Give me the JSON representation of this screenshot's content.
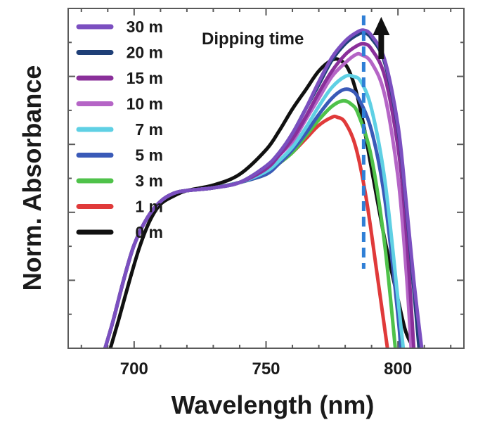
{
  "chart_data": {
    "type": "line",
    "title": "",
    "xlabel": "Wavelength (nm)",
    "ylabel": "Norm. Absorbance",
    "xlim": [
      675,
      825
    ],
    "ylim": [
      0,
      1.25
    ],
    "x_ticks": [
      700,
      750,
      800
    ],
    "y_tick_labels_shown": false,
    "grid": false,
    "legend_position": "top-left",
    "annotation": {
      "text": "Dipping time",
      "marker_x": 787,
      "arrow": "up",
      "marker_color": "#2f7fd6",
      "arrow_color": "#111111"
    },
    "series": [
      {
        "name": "30 m",
        "color": "#7b4fc0",
        "x": [
          689,
          692,
          696,
          700,
          705,
          710,
          715,
          720,
          730,
          740,
          750,
          755,
          760,
          765,
          770,
          775,
          780,
          784,
          787,
          790,
          795,
          800,
          803,
          806,
          809
        ],
        "y": [
          0.0,
          0.1,
          0.25,
          0.38,
          0.48,
          0.54,
          0.57,
          0.58,
          0.59,
          0.61,
          0.67,
          0.72,
          0.79,
          0.88,
          0.98,
          1.07,
          1.13,
          1.16,
          1.17,
          1.15,
          1.06,
          0.82,
          0.55,
          0.25,
          0.0
        ]
      },
      {
        "name": "20 m",
        "color": "#1f3f77",
        "x": [
          689,
          692,
          696,
          700,
          705,
          710,
          715,
          720,
          730,
          740,
          750,
          755,
          760,
          765,
          770,
          775,
          780,
          784,
          787,
          790,
          795,
          800,
          803,
          806,
          808
        ],
        "y": [
          0.0,
          0.1,
          0.25,
          0.38,
          0.48,
          0.54,
          0.57,
          0.58,
          0.59,
          0.61,
          0.67,
          0.72,
          0.79,
          0.88,
          0.97,
          1.06,
          1.12,
          1.15,
          1.16,
          1.14,
          1.05,
          0.81,
          0.54,
          0.22,
          0.0
        ]
      },
      {
        "name": "15 m",
        "color": "#8a2f9a",
        "x": [
          689,
          692,
          696,
          700,
          705,
          710,
          715,
          720,
          730,
          740,
          750,
          755,
          760,
          765,
          770,
          775,
          780,
          784,
          787,
          790,
          795,
          800,
          803,
          806
        ],
        "y": [
          0.0,
          0.1,
          0.25,
          0.38,
          0.48,
          0.54,
          0.57,
          0.58,
          0.59,
          0.61,
          0.66,
          0.71,
          0.77,
          0.85,
          0.94,
          1.02,
          1.08,
          1.11,
          1.12,
          1.1,
          1.0,
          0.74,
          0.45,
          0.0
        ]
      },
      {
        "name": "10 m",
        "color": "#b565c6",
        "x": [
          689,
          692,
          696,
          700,
          705,
          710,
          715,
          720,
          730,
          740,
          750,
          755,
          760,
          765,
          770,
          775,
          780,
          784,
          786,
          790,
          795,
          800,
          803,
          805
        ],
        "y": [
          0.0,
          0.1,
          0.25,
          0.38,
          0.48,
          0.54,
          0.57,
          0.58,
          0.59,
          0.61,
          0.66,
          0.71,
          0.76,
          0.84,
          0.92,
          1.0,
          1.05,
          1.08,
          1.08,
          1.05,
          0.93,
          0.63,
          0.3,
          0.0
        ]
      },
      {
        "name": "7 m",
        "color": "#5fd0e4",
        "x": [
          689,
          692,
          696,
          700,
          705,
          710,
          715,
          720,
          730,
          740,
          750,
          755,
          760,
          765,
          770,
          775,
          780,
          783,
          786,
          790,
          795,
          800,
          802
        ],
        "y": [
          0.0,
          0.1,
          0.25,
          0.38,
          0.48,
          0.54,
          0.57,
          0.58,
          0.59,
          0.61,
          0.65,
          0.69,
          0.74,
          0.81,
          0.89,
          0.96,
          1.0,
          1.0,
          0.98,
          0.88,
          0.62,
          0.18,
          0.0
        ]
      },
      {
        "name": "5 m",
        "color": "#3a5ab8",
        "x": [
          689,
          692,
          696,
          700,
          705,
          710,
          715,
          720,
          730,
          740,
          750,
          755,
          760,
          765,
          770,
          775,
          779,
          782,
          785,
          790,
          795,
          800,
          801
        ],
        "y": [
          0.0,
          0.1,
          0.25,
          0.38,
          0.48,
          0.54,
          0.57,
          0.58,
          0.59,
          0.61,
          0.64,
          0.68,
          0.73,
          0.79,
          0.86,
          0.92,
          0.95,
          0.95,
          0.92,
          0.8,
          0.55,
          0.12,
          0.0
        ]
      },
      {
        "name": "3 m",
        "color": "#4fc24a",
        "x": [
          689,
          692,
          696,
          700,
          705,
          710,
          715,
          720,
          730,
          740,
          750,
          755,
          760,
          765,
          770,
          775,
          779,
          782,
          785,
          790,
          795,
          799
        ],
        "y": [
          0.0,
          0.1,
          0.25,
          0.38,
          0.48,
          0.54,
          0.57,
          0.58,
          0.59,
          0.61,
          0.64,
          0.68,
          0.72,
          0.78,
          0.84,
          0.89,
          0.91,
          0.9,
          0.86,
          0.7,
          0.38,
          0.0
        ]
      },
      {
        "name": "1 m",
        "color": "#e03a3a",
        "x": [
          689,
          692,
          696,
          700,
          705,
          710,
          715,
          720,
          730,
          740,
          750,
          755,
          760,
          765,
          770,
          775,
          777,
          780,
          784,
          788,
          792,
          796
        ],
        "y": [
          0.0,
          0.1,
          0.25,
          0.38,
          0.48,
          0.54,
          0.57,
          0.58,
          0.59,
          0.61,
          0.64,
          0.68,
          0.72,
          0.77,
          0.82,
          0.85,
          0.85,
          0.83,
          0.74,
          0.55,
          0.28,
          0.0
        ]
      },
      {
        "name": "0 m",
        "color": "#111111",
        "x": [
          691,
          694,
          698,
          702,
          706,
          710,
          715,
          720,
          730,
          740,
          750,
          755,
          760,
          765,
          770,
          775,
          778,
          781,
          784,
          787,
          790,
          795,
          800,
          803,
          806
        ],
        "y": [
          0.0,
          0.1,
          0.24,
          0.37,
          0.47,
          0.53,
          0.56,
          0.58,
          0.6,
          0.64,
          0.73,
          0.8,
          0.88,
          0.95,
          1.02,
          1.06,
          1.06,
          1.03,
          0.95,
          0.82,
          0.66,
          0.4,
          0.18,
          0.06,
          0.0
        ]
      }
    ]
  }
}
